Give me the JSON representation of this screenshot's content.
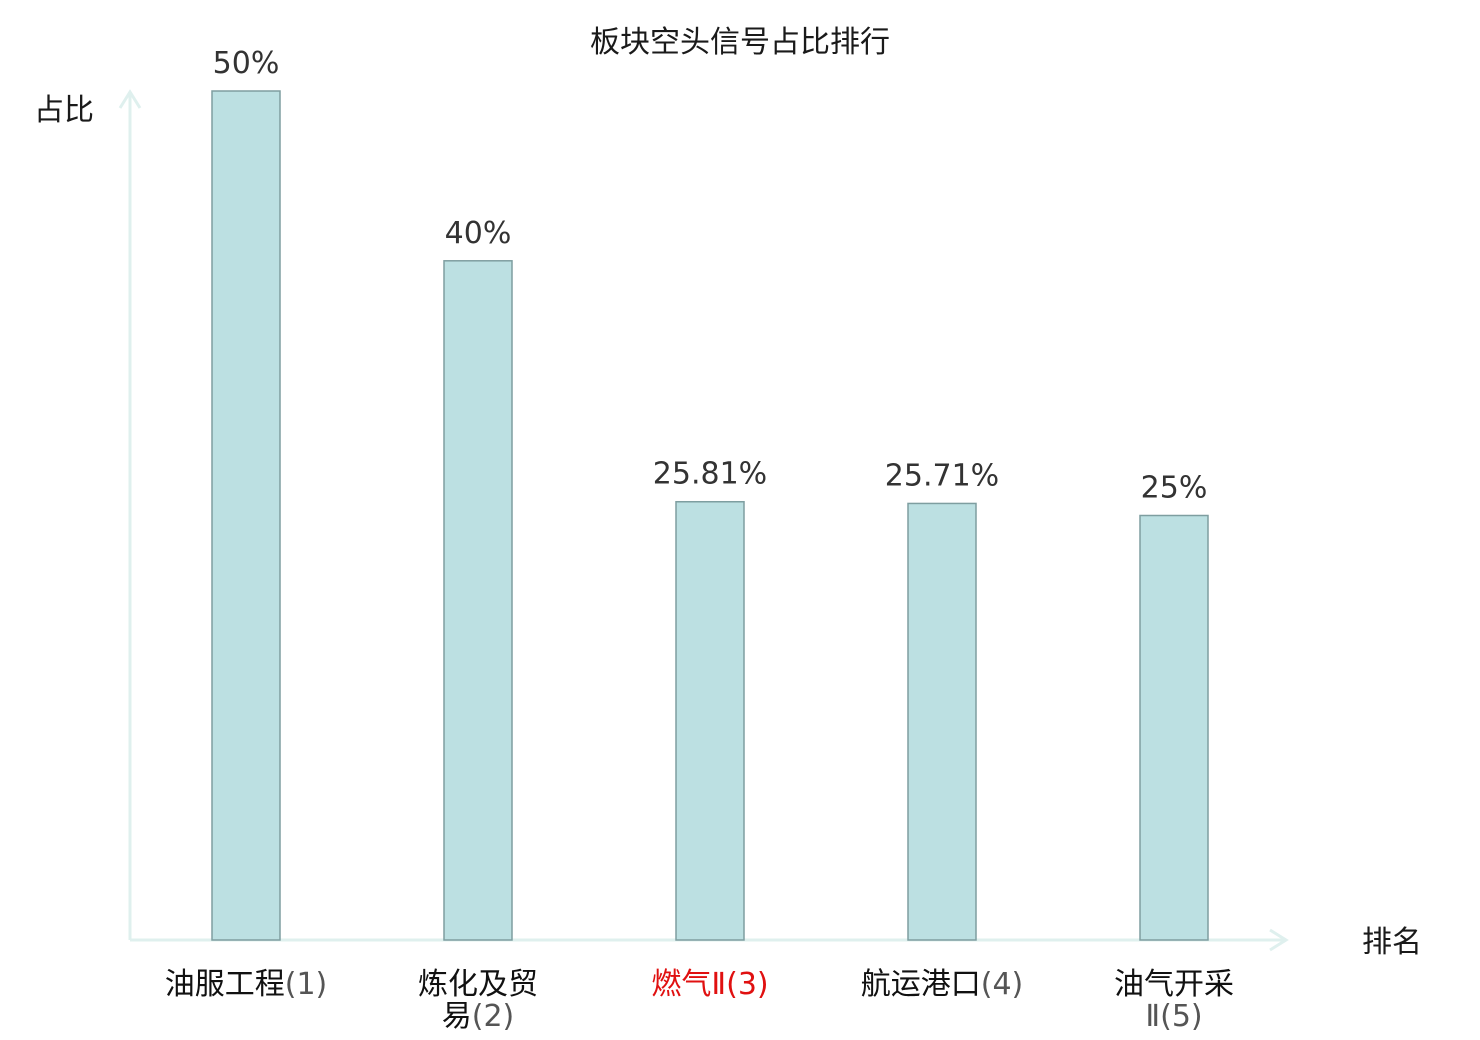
{
  "chart_data": {
    "type": "bar",
    "title": "板块空头信号占比排行",
    "ylabel": "占比",
    "xlabel": "排名",
    "categories": [
      {
        "lines": [
          {
            "name": "油服工程",
            "rank": "(1)"
          }
        ],
        "highlight": false
      },
      {
        "lines": [
          {
            "name": "炼化及贸",
            "rank": ""
          },
          {
            "name": "易",
            "rank": "(2)"
          }
        ],
        "highlight": false
      },
      {
        "lines": [
          {
            "name": "燃气Ⅱ",
            "rank": "(3)"
          }
        ],
        "highlight": true
      },
      {
        "lines": [
          {
            "name": "航运港口",
            "rank": "(4)"
          }
        ],
        "highlight": false
      },
      {
        "lines": [
          {
            "name": "油气开采",
            "rank": ""
          },
          {
            "name": "",
            "rank": "Ⅱ(5)"
          }
        ],
        "highlight": false
      }
    ],
    "values": [
      50,
      40,
      25.81,
      25.71,
      25
    ],
    "value_labels": [
      "50%",
      "40%",
      "25.81%",
      "25.71%",
      "25%"
    ],
    "ylim": [
      0,
      50
    ],
    "grid": false,
    "colors": {
      "bar": "#bce0e2",
      "bar_border": "#7e9ea0",
      "axis": "#dff0ee",
      "highlight": "#e01010"
    }
  }
}
